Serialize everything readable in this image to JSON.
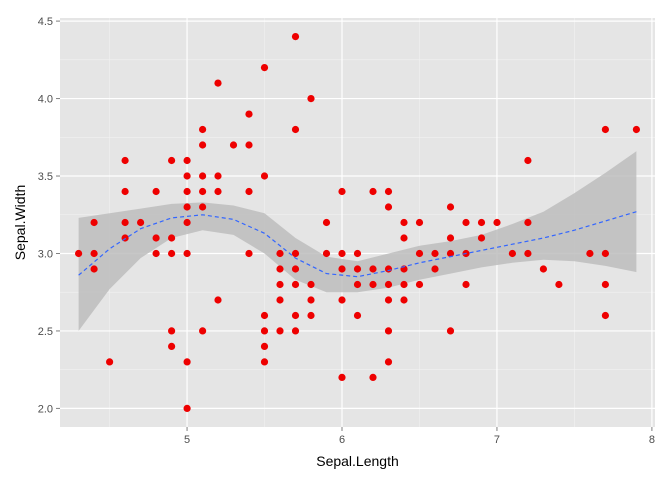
{
  "chart_data": {
    "type": "scatter",
    "xlabel": "Sepal.Length",
    "ylabel": "Sepal.Width",
    "xlim": [
      4.18,
      8.02
    ],
    "ylim": [
      1.88,
      4.52
    ],
    "x_ticks": [
      5,
      6,
      7,
      8
    ],
    "y_ticks": [
      2.0,
      2.5,
      3.0,
      3.5,
      4.0,
      4.5
    ],
    "x_tick_labels": [
      "5",
      "6",
      "7",
      "8"
    ],
    "y_tick_labels": [
      "2.0",
      "2.5",
      "3.0",
      "3.5",
      "4.0",
      "4.5"
    ],
    "grid": true,
    "legend": "none",
    "point_color": "#ee0000",
    "smooth_color": "#3366ff",
    "ribbon_color": "#bdbdbd",
    "panel_background": "#e5e5e5",
    "points": [
      [
        4.3,
        3.0
      ],
      [
        4.4,
        3.2
      ],
      [
        4.4,
        3.0
      ],
      [
        4.4,
        2.9
      ],
      [
        4.5,
        2.3
      ],
      [
        4.6,
        3.6
      ],
      [
        4.6,
        3.4
      ],
      [
        4.6,
        3.2
      ],
      [
        4.6,
        3.1
      ],
      [
        4.7,
        3.2
      ],
      [
        4.8,
        3.4
      ],
      [
        4.8,
        3.1
      ],
      [
        4.8,
        3.0
      ],
      [
        4.9,
        3.6
      ],
      [
        4.9,
        3.1
      ],
      [
        4.9,
        3.0
      ],
      [
        4.9,
        2.5
      ],
      [
        4.9,
        2.4
      ],
      [
        5.0,
        3.6
      ],
      [
        5.0,
        3.5
      ],
      [
        5.0,
        3.4
      ],
      [
        5.0,
        3.3
      ],
      [
        5.0,
        3.2
      ],
      [
        5.0,
        3.0
      ],
      [
        5.0,
        2.3
      ],
      [
        5.0,
        2.0
      ],
      [
        5.1,
        3.8
      ],
      [
        5.1,
        3.7
      ],
      [
        5.1,
        3.5
      ],
      [
        5.1,
        3.4
      ],
      [
        5.1,
        3.3
      ],
      [
        5.1,
        2.5
      ],
      [
        5.2,
        4.1
      ],
      [
        5.2,
        3.5
      ],
      [
        5.2,
        3.4
      ],
      [
        5.2,
        2.7
      ],
      [
        5.3,
        3.7
      ],
      [
        5.4,
        3.9
      ],
      [
        5.4,
        3.7
      ],
      [
        5.4,
        3.4
      ],
      [
        5.4,
        3.0
      ],
      [
        5.5,
        4.2
      ],
      [
        5.5,
        3.5
      ],
      [
        5.5,
        2.6
      ],
      [
        5.5,
        2.5
      ],
      [
        5.5,
        2.4
      ],
      [
        5.5,
        2.3
      ],
      [
        5.6,
        3.0
      ],
      [
        5.6,
        2.9
      ],
      [
        5.6,
        2.8
      ],
      [
        5.6,
        2.7
      ],
      [
        5.6,
        2.5
      ],
      [
        5.7,
        4.4
      ],
      [
        5.7,
        3.8
      ],
      [
        5.7,
        3.0
      ],
      [
        5.7,
        2.9
      ],
      [
        5.7,
        2.8
      ],
      [
        5.7,
        2.6
      ],
      [
        5.7,
        2.5
      ],
      [
        5.8,
        4.0
      ],
      [
        5.8,
        2.8
      ],
      [
        5.8,
        2.7
      ],
      [
        5.8,
        2.6
      ],
      [
        5.9,
        3.2
      ],
      [
        5.9,
        3.0
      ],
      [
        6.0,
        3.4
      ],
      [
        6.0,
        3.0
      ],
      [
        6.0,
        2.9
      ],
      [
        6.0,
        2.7
      ],
      [
        6.0,
        2.2
      ],
      [
        6.1,
        3.0
      ],
      [
        6.1,
        2.9
      ],
      [
        6.1,
        2.8
      ],
      [
        6.1,
        2.6
      ],
      [
        6.2,
        3.4
      ],
      [
        6.2,
        2.9
      ],
      [
        6.2,
        2.8
      ],
      [
        6.2,
        2.2
      ],
      [
        6.3,
        3.4
      ],
      [
        6.3,
        3.3
      ],
      [
        6.3,
        2.9
      ],
      [
        6.3,
        2.8
      ],
      [
        6.3,
        2.7
      ],
      [
        6.3,
        2.5
      ],
      [
        6.3,
        2.3
      ],
      [
        6.4,
        3.2
      ],
      [
        6.4,
        3.1
      ],
      [
        6.4,
        2.9
      ],
      [
        6.4,
        2.8
      ],
      [
        6.4,
        2.7
      ],
      [
        6.5,
        3.2
      ],
      [
        6.5,
        3.0
      ],
      [
        6.5,
        2.8
      ],
      [
        6.6,
        3.0
      ],
      [
        6.6,
        2.9
      ],
      [
        6.7,
        3.3
      ],
      [
        6.7,
        3.1
      ],
      [
        6.7,
        3.0
      ],
      [
        6.7,
        2.5
      ],
      [
        6.8,
        3.2
      ],
      [
        6.8,
        3.0
      ],
      [
        6.8,
        2.8
      ],
      [
        6.9,
        3.2
      ],
      [
        6.9,
        3.1
      ],
      [
        7.0,
        3.2
      ],
      [
        7.1,
        3.0
      ],
      [
        7.2,
        3.6
      ],
      [
        7.2,
        3.2
      ],
      [
        7.2,
        3.0
      ],
      [
        7.3,
        2.9
      ],
      [
        7.4,
        2.8
      ],
      [
        7.6,
        3.0
      ],
      [
        7.7,
        3.8
      ],
      [
        7.7,
        3.0
      ],
      [
        7.7,
        2.8
      ],
      [
        7.7,
        2.6
      ],
      [
        7.9,
        3.8
      ]
    ],
    "smooth": {
      "x": [
        4.3,
        4.5,
        4.7,
        4.9,
        5.1,
        5.3,
        5.5,
        5.7,
        5.9,
        6.1,
        6.3,
        6.5,
        6.7,
        6.9,
        7.1,
        7.3,
        7.5,
        7.7,
        7.9
      ],
      "fit": [
        2.86,
        3.03,
        3.16,
        3.23,
        3.25,
        3.22,
        3.13,
        2.97,
        2.87,
        2.85,
        2.89,
        2.94,
        2.98,
        3.02,
        3.06,
        3.1,
        3.15,
        3.21,
        3.27
      ],
      "lower": [
        2.5,
        2.77,
        2.97,
        3.1,
        3.15,
        3.12,
        3.0,
        2.83,
        2.75,
        2.75,
        2.78,
        2.83,
        2.87,
        2.91,
        2.94,
        2.96,
        2.95,
        2.92,
        2.88
      ],
      "upper": [
        3.23,
        3.26,
        3.29,
        3.32,
        3.33,
        3.31,
        3.26,
        3.1,
        2.98,
        2.95,
        3.0,
        3.05,
        3.08,
        3.12,
        3.19,
        3.27,
        3.39,
        3.52,
        3.66
      ]
    }
  }
}
